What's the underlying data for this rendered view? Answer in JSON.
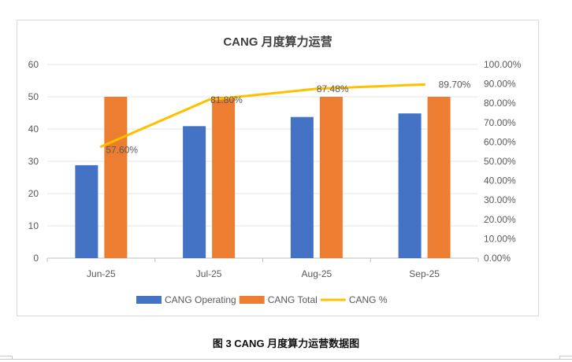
{
  "chart_data": {
    "type": "bar+line",
    "title": "CANG 月度算力运营",
    "categories": [
      "Jun-25",
      "Jul-25",
      "Aug-25",
      "Sep-25"
    ],
    "series": [
      {
        "name": "CANG Operating",
        "type": "bar",
        "axis": "left",
        "color": "#4472C4",
        "values": [
          28.8,
          40.9,
          43.74,
          44.85
        ]
      },
      {
        "name": "CANG Total",
        "type": "bar",
        "axis": "left",
        "color": "#ED7D31",
        "values": [
          50,
          50,
          50,
          50
        ]
      },
      {
        "name": "CANG %",
        "type": "line",
        "axis": "right",
        "color": "#FFC000",
        "values": [
          57.6,
          81.8,
          87.48,
          89.7
        ],
        "labels": [
          "57.60%",
          "81.80%",
          "87.48%",
          "89.70%"
        ]
      }
    ],
    "ylim": [
      0,
      60
    ],
    "yticks": [
      "0",
      "10",
      "20",
      "30",
      "40",
      "50",
      "60"
    ],
    "y2lim": [
      0,
      100
    ],
    "y2ticks": [
      "0.00%",
      "10.00%",
      "20.00%",
      "30.00%",
      "40.00%",
      "50.00%",
      "60.00%",
      "70.00%",
      "80.00%",
      "90.00%",
      "100.00%"
    ],
    "xlabel": "",
    "ylabel": "",
    "grid": true,
    "legend_position": "bottom"
  },
  "caption": "图  3 CANG 月度算力运营数据图"
}
